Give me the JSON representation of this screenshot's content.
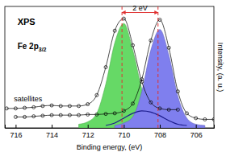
{
  "chart_data": {
    "type": "line",
    "x_label": "Binding energy, (eV)",
    "y_label": "Intensity, (a. u.)",
    "xlim": [
      716.6,
      705
    ],
    "ylim": [
      0,
      100
    ],
    "xticks": [
      716,
      714,
      712,
      710,
      708,
      706
    ],
    "tick_labels": "x",
    "grid": false,
    "vlines": [
      710.1,
      708.1
    ],
    "annotations": [
      {
        "text": "XPS",
        "x": 715.9,
        "y": 85
      },
      {
        "text": "Fe 2p",
        "sub": "3/2",
        "x": 715.9,
        "y": 65
      },
      {
        "text": "satellites",
        "x": 716.1,
        "y": 22
      },
      {
        "text": "2 eV",
        "x": 709.1,
        "y": 97
      }
    ],
    "series": [
      {
        "type": "area",
        "color": "#66d966",
        "x": [
          712.5,
          712,
          711.5,
          711,
          710.5,
          710,
          709.5,
          709,
          708.5,
          708,
          707.5
        ],
        "values": [
          3,
          5,
          12,
          36,
          70,
          86,
          64,
          32,
          11,
          4,
          3
        ]
      },
      {
        "type": "area",
        "color": "#7f7fee",
        "x": [
          710.5,
          710,
          709.5,
          709,
          708.5,
          708,
          707.5,
          707,
          706.5,
          706,
          705.5
        ],
        "values": [
          2,
          4,
          9,
          30,
          64,
          81,
          60,
          26,
          8,
          3,
          2
        ]
      },
      {
        "type": "line",
        "color": "#1c1c8c",
        "line_style": "solid",
        "x": [
          711,
          710.5,
          710,
          709.5,
          709,
          708.5,
          708,
          707.5,
          707,
          706.5
        ],
        "values": [
          2,
          4,
          8,
          12,
          14,
          13,
          10,
          6,
          3,
          2
        ]
      },
      {
        "type": "line",
        "color": "#000000",
        "marker": "circle",
        "line_style": "solid",
        "x": [
          716.5,
          716,
          715.5,
          715,
          714.5,
          714,
          713.5,
          713,
          712.5,
          712,
          711.5,
          711,
          710.5,
          710,
          709.5,
          709,
          708.5,
          708,
          707.5,
          707
        ],
        "values": [
          16,
          16,
          16.5,
          17,
          18,
          18.5,
          18,
          18,
          18,
          19.5,
          27,
          50,
          80,
          90,
          68,
          38,
          21,
          16,
          15,
          15
        ]
      },
      {
        "type": "line",
        "color": "#000000",
        "marker": "circle",
        "line_style": "solid",
        "x": [
          716,
          715.5,
          715,
          714.5,
          714,
          713.5,
          713,
          712.5,
          712,
          711.5,
          711,
          710.5,
          710,
          709.5,
          709,
          708.5,
          708,
          707.5,
          707,
          706.5,
          706,
          705.5,
          705
        ],
        "values": [
          9,
          9,
          9.5,
          10,
          10.5,
          10.5,
          10.5,
          10.5,
          11,
          11,
          11.5,
          12,
          14,
          20,
          40,
          72,
          89,
          66,
          30,
          12,
          8,
          7,
          7
        ]
      }
    ]
  }
}
